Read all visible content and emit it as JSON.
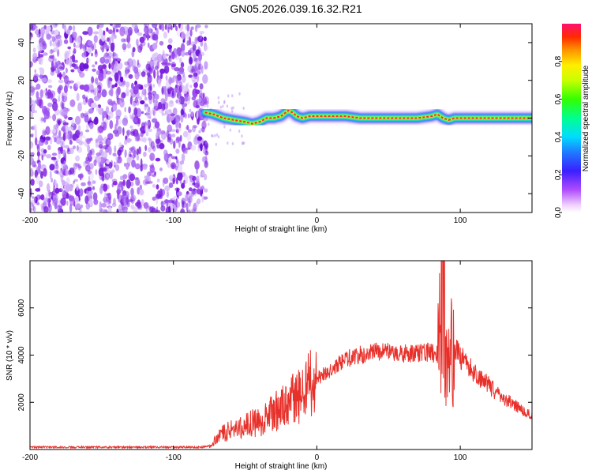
{
  "title": "GN05.2026.039.16.32.R21",
  "chart_data": [
    {
      "type": "heatmap",
      "name": "spectrogram",
      "xlabel": "Height of straight line (km)",
      "ylabel": "Frequency (Hz)",
      "xlim": [
        -200,
        150
      ],
      "ylim": [
        -50,
        50
      ],
      "xticks": [
        -200,
        -100,
        0,
        100
      ],
      "yticks": [
        -40,
        -20,
        0,
        20,
        40
      ],
      "noise_region_x": [
        -200,
        -78
      ],
      "signal_track": {
        "x": [
          -78,
          -72,
          -65,
          -58,
          -50,
          -45,
          -40,
          -35,
          -30,
          -25,
          -20,
          -17,
          -14,
          -10,
          -5,
          0,
          10,
          20,
          30,
          40,
          50,
          60,
          70,
          80,
          84,
          88,
          92,
          96,
          100,
          110,
          120,
          130,
          140,
          150
        ],
        "freq": [
          3,
          2,
          0,
          -1,
          -2,
          -3,
          -2,
          0,
          0,
          1,
          4,
          3,
          1,
          0,
          1,
          1,
          1,
          1,
          0,
          0,
          0,
          0,
          0,
          1,
          2,
          0,
          -1,
          0,
          0,
          0,
          0,
          0,
          0,
          0
        ]
      },
      "colorbar": {
        "label": "Normalized spectral amplitude",
        "ticks": [
          "0.0",
          "0.2",
          "0.4",
          "0.6",
          "0.8"
        ],
        "range": [
          0,
          1
        ]
      }
    },
    {
      "type": "line",
      "name": "snr",
      "xlabel": "Height of straight line (km)",
      "ylabel": "SNR (10 * v/v)",
      "xlim": [
        -200,
        150
      ],
      "ylim": [
        0,
        8000
      ],
      "xticks": [
        -200,
        -100,
        0,
        100
      ],
      "yticks": [
        2000,
        4000,
        6000
      ],
      "series": [
        {
          "name": "SNR",
          "color": "#e8302a",
          "x": [
            -200,
            -150,
            -100,
            -80,
            -74,
            -70,
            -65,
            -60,
            -55,
            -50,
            -45,
            -40,
            -35,
            -30,
            -25,
            -20,
            -15,
            -10,
            -5,
            0,
            5,
            10,
            15,
            20,
            25,
            30,
            35,
            40,
            45,
            50,
            55,
            60,
            65,
            70,
            75,
            80,
            84,
            86,
            88,
            89,
            90,
            92,
            95,
            100,
            105,
            110,
            115,
            120,
            125,
            130,
            135,
            140,
            145,
            150
          ],
          "values": [
            100,
            100,
            100,
            100,
            150,
            500,
            700,
            800,
            900,
            1000,
            1100,
            1200,
            1400,
            1600,
            1800,
            2000,
            2200,
            2400,
            2700,
            3000,
            3200,
            3400,
            3600,
            3800,
            3950,
            4000,
            4050,
            4100,
            4150,
            4100,
            4050,
            4050,
            4100,
            4100,
            4150,
            4100,
            4000,
            5000,
            7800,
            6000,
            3000,
            4500,
            4200,
            3900,
            3600,
            3300,
            3000,
            2700,
            2400,
            2200,
            2000,
            1800,
            1600,
            1500
          ]
        }
      ]
    }
  ]
}
